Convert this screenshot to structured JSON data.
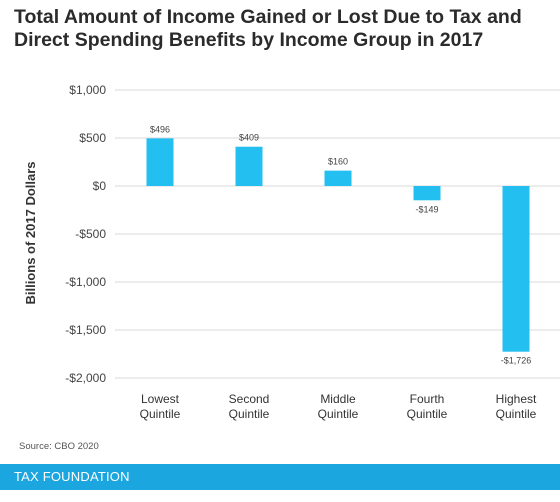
{
  "title": "Total Amount of Income Gained or Lost Due to Tax and Direct Spending Benefits by Income Group in 2017",
  "source": "Source: CBO 2020",
  "footer": "TAX FOUNDATION",
  "colors": {
    "bar": "#22bff0",
    "grid": "#d9d9d9",
    "footer": "#1ba6e0"
  },
  "chart_data": {
    "type": "bar",
    "categories": [
      [
        "Lowest",
        "Quintile"
      ],
      [
        "Second",
        "Quintile"
      ],
      [
        "Middle",
        "Quintile"
      ],
      [
        "Fourth",
        "Quintile"
      ],
      [
        "Highest",
        "Quintile"
      ]
    ],
    "values": [
      496,
      409,
      160,
      -149,
      -1726
    ],
    "data_labels": [
      "$496",
      "$409",
      "$160",
      "-$149",
      "-$1,726"
    ],
    "ylabel": "Billions of 2017 Dollars",
    "ylim": [
      -2000,
      1000
    ],
    "yticks": [
      1000,
      500,
      0,
      -500,
      -1000,
      -1500,
      -2000
    ],
    "ytick_labels": [
      "$1,000",
      "$500",
      "$0",
      "-$500",
      "-$1,000",
      "-$1,500",
      "-$2,000"
    ],
    "grid": true
  }
}
